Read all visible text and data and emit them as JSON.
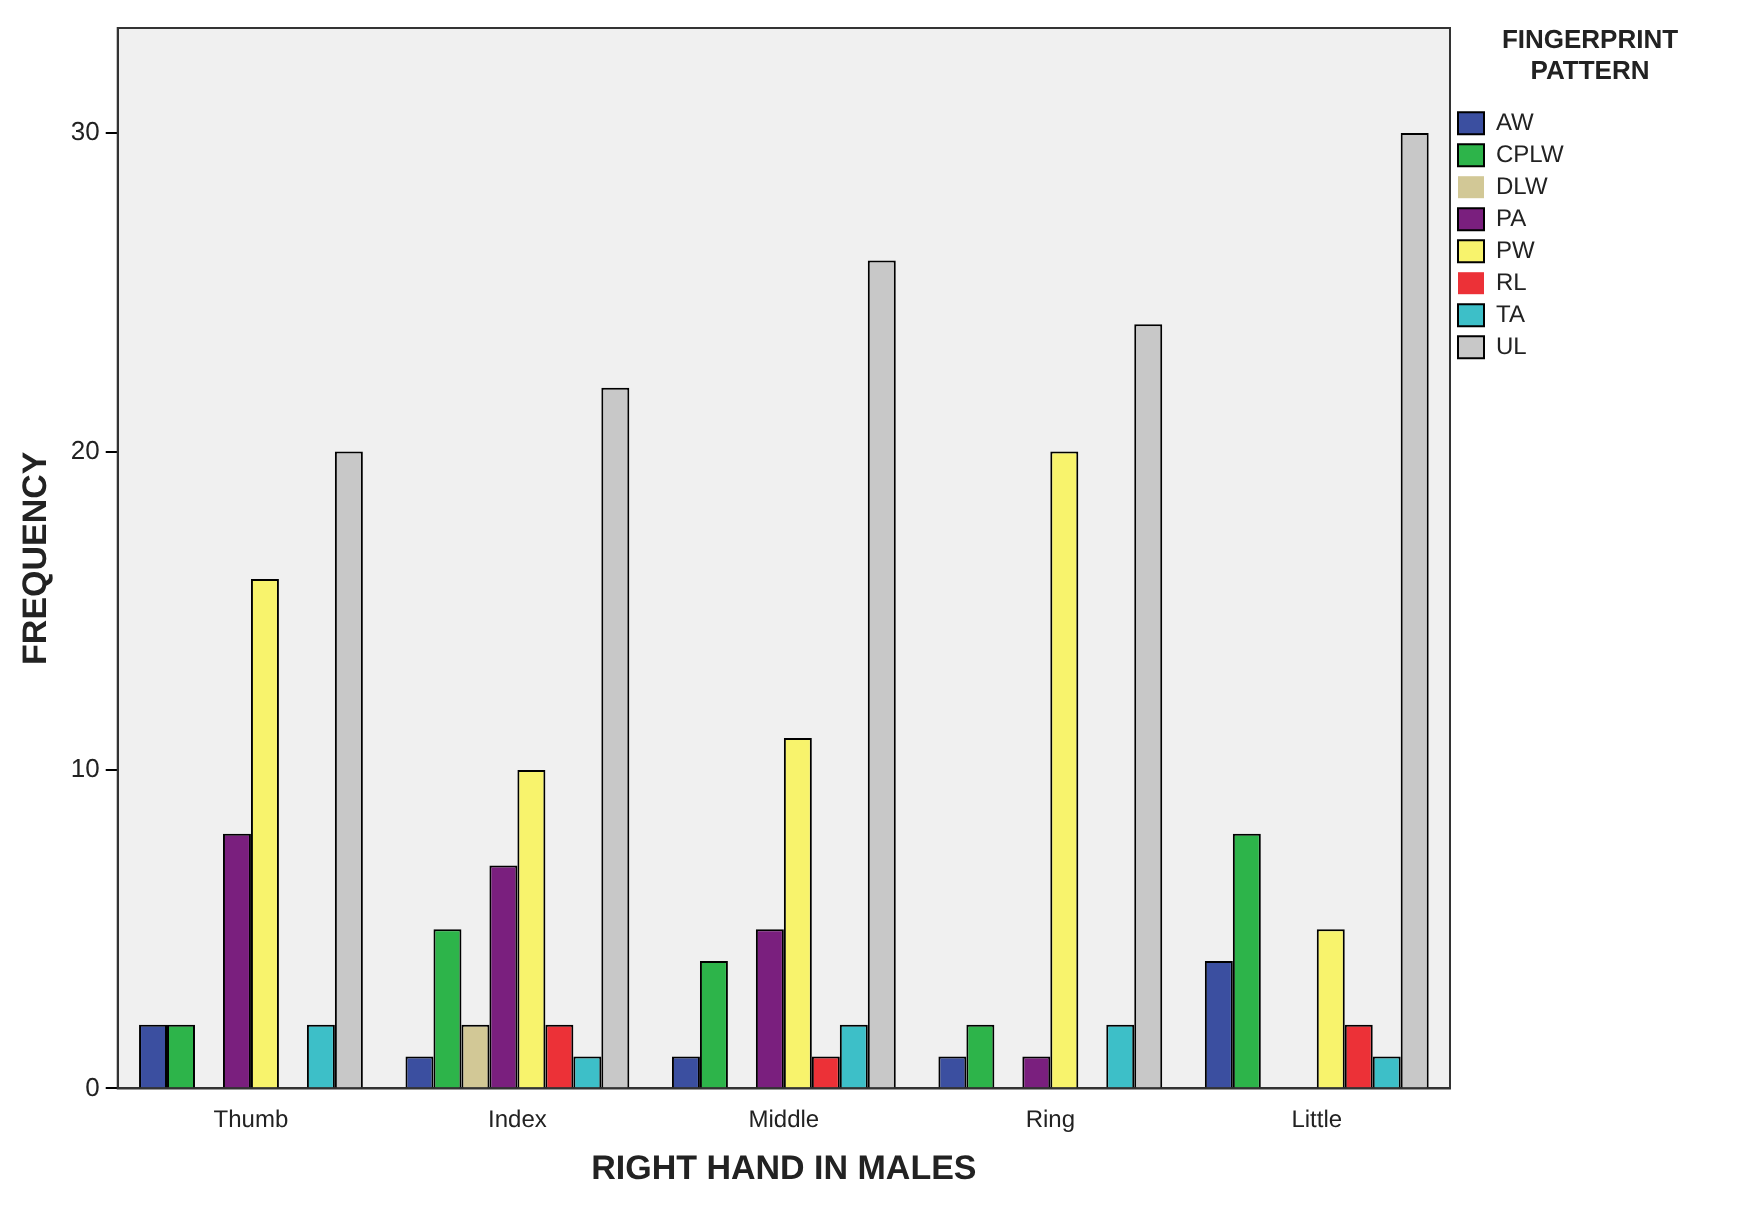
{
  "chart_data": {
    "type": "bar",
    "xlabel": "RIGHT HAND IN MALES",
    "ylabel": "FREQUENCY",
    "legend_title": "FINGERPRINT PATTERN",
    "legend": "top right",
    "grid": false,
    "categories": [
      "Thumb",
      "Index",
      "Middle",
      "Ring",
      "Little"
    ],
    "ylim": [
      0,
      33.3
    ],
    "yticks": [
      0,
      10,
      20,
      30
    ],
    "series": [
      {
        "name": "AW",
        "color": "#3b4fa0",
        "values": [
          2,
          1,
          1,
          1,
          4
        ]
      },
      {
        "name": "CPLW",
        "color": "#2db44a",
        "values": [
          2,
          5,
          4,
          2,
          8
        ]
      },
      {
        "name": "DLW",
        "color": "#d2c896",
        "values": [
          0,
          2,
          0,
          0,
          0
        ]
      },
      {
        "name": "PA",
        "color": "#7a1f7e",
        "values": [
          8,
          7,
          5,
          1,
          0
        ]
      },
      {
        "name": "PW",
        "color": "#f8f36c",
        "values": [
          16,
          10,
          11,
          20,
          5
        ]
      },
      {
        "name": "RL",
        "color": "#ec3137",
        "values": [
          0,
          2,
          1,
          0,
          2
        ]
      },
      {
        "name": "TA",
        "color": "#3dbfc8",
        "values": [
          2,
          1,
          2,
          2,
          1
        ]
      },
      {
        "name": "UL",
        "color": "#c8c8c8",
        "values": [
          20,
          22,
          26,
          24,
          30
        ]
      }
    ]
  }
}
